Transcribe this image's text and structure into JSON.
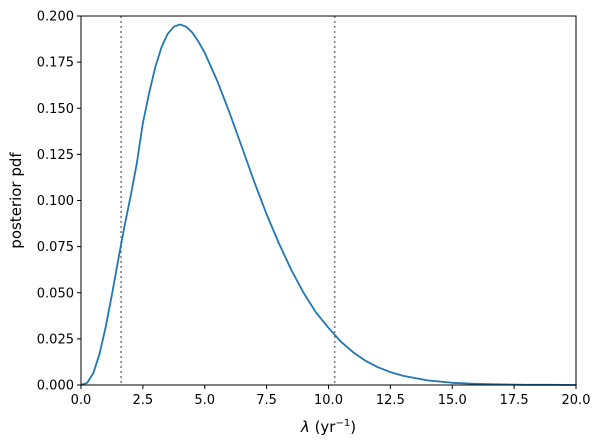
{
  "chart_data": {
    "type": "line",
    "title": "",
    "xlabel_symbol": "λ",
    "xlabel_unit_open": "(yr",
    "xlabel_unit_exp": "−1",
    "xlabel_unit_close": ")",
    "ylabel": "posterior pdf",
    "xlim": [
      0.0,
      20.0
    ],
    "ylim": [
      0.0,
      0.2
    ],
    "x_ticks": [
      "0.0",
      "2.5",
      "5.0",
      "7.5",
      "10.0",
      "12.5",
      "15.0",
      "17.5",
      "20.0"
    ],
    "y_ticks": [
      "0.000",
      "0.025",
      "0.050",
      "0.075",
      "0.100",
      "0.125",
      "0.150",
      "0.175",
      "0.200"
    ],
    "grid": false,
    "series": [
      {
        "color": "#1f77b4",
        "x": [
          0,
          0.25,
          0.5,
          0.75,
          1.0,
          1.25,
          1.5,
          1.75,
          2.0,
          2.25,
          2.5,
          2.75,
          3.0,
          3.25,
          3.5,
          3.75,
          4.0,
          4.25,
          4.5,
          4.75,
          5.0,
          5.5,
          6.0,
          6.5,
          7.0,
          7.5,
          8.0,
          8.5,
          9.0,
          9.5,
          10.0,
          10.5,
          11.0,
          11.5,
          12.0,
          12.5,
          13.0,
          14.0,
          15.0,
          16.0,
          17.0,
          18.0,
          19.0,
          20.0
        ],
        "y": [
          0,
          0.0012,
          0.0065,
          0.0169,
          0.0316,
          0.049,
          0.0675,
          0.0856,
          0.102,
          0.1198,
          0.142,
          0.158,
          0.1722,
          0.183,
          0.1903,
          0.1942,
          0.1954,
          0.1942,
          0.191,
          0.186,
          0.18,
          0.165,
          0.1476,
          0.129,
          0.1101,
          0.0925,
          0.0767,
          0.0623,
          0.0498,
          0.0392,
          0.031,
          0.0235,
          0.0177,
          0.0131,
          0.0096,
          0.007,
          0.005,
          0.0025,
          0.0012,
          0.0006,
          0.0003,
          0.0001,
          0.0001,
          0.0
        ]
      }
    ],
    "vlines": [
      {
        "x": 1.62,
        "color": "#808080",
        "style": "dotted"
      },
      {
        "x": 10.25,
        "color": "#808080",
        "style": "dotted"
      }
    ]
  }
}
